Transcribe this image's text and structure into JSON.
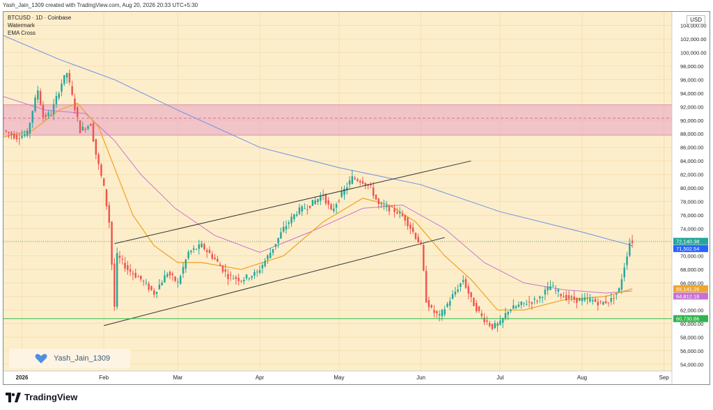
{
  "credit": "Yash_Jain_1309 created with TradingView.com, Aug 20, 2026 20:33 UTC+5:30",
  "legend": {
    "symbol": "BTCUSD · 1D · Coinbase",
    "watermark": "Watermark",
    "indicator": "EMA Cross"
  },
  "currency": "USD",
  "watermark_text": "Yash_Jain_1309",
  "brand": "TradingView",
  "colors": {
    "bullish": "#26a69a",
    "bearish": "#ef5350",
    "ema_fast": "#f0a62a",
    "ema_mid": "#c772d3",
    "ema_slow": "#6b8fe8",
    "zone": "#e9a9c6",
    "support": "#2fb54a",
    "channel": "#333333",
    "background": "#fdeecb"
  },
  "chart_data": {
    "type": "candlestick",
    "title": "BTCUSD · 1D · Coinbase",
    "y_range": [
      53000,
      106000
    ],
    "y_ticks": [
      54000,
      56000,
      58000,
      60000,
      62000,
      64000,
      66000,
      68000,
      70000,
      72000,
      74000,
      76000,
      78000,
      80000,
      82000,
      84000,
      86000,
      88000,
      90000,
      92000,
      94000,
      96000,
      98000,
      100000,
      102000,
      104000
    ],
    "y_tick_labels": [
      "54,000.00",
      "56,000.00",
      "58,000.00",
      "60,000.00",
      "62,000.00",
      "64,000.00",
      "66,000.00",
      "68,000.00",
      "70,000.00",
      "72,000.00",
      "74,000.00",
      "76,000.00",
      "78,000.00",
      "80,000.00",
      "82,000.00",
      "84,000.00",
      "86,000.00",
      "88,000.00",
      "90,000.00",
      "92,000.00",
      "94,000.00",
      "96,000.00",
      "98,000.00",
      "100,000.00",
      "102,000.00",
      "104,000.00"
    ],
    "x_range": [
      "2025-12-25",
      "2026-09-04"
    ],
    "x_ticks": [
      "2026-01-01",
      "2026-02-01",
      "2026-03-01",
      "2026-04-01",
      "2026-05-01",
      "2026-06-01",
      "2026-07-01",
      "2026-08-01",
      "2026-09-01"
    ],
    "x_tick_labels": [
      "2026",
      "Feb",
      "Mar",
      "Apr",
      "May",
      "Jun",
      "Jul",
      "Aug",
      "Sep"
    ],
    "candle_closes": {
      "start": "2025-12-25",
      "end": "2026-08-20",
      "anchors": [
        [
          "2025-12-25",
          88500
        ],
        [
          "2025-12-30",
          87500
        ],
        [
          "2026-01-03",
          88000
        ],
        [
          "2026-01-05",
          91500
        ],
        [
          "2026-01-07",
          94500
        ],
        [
          "2026-01-09",
          90500
        ],
        [
          "2026-01-12",
          91000
        ],
        [
          "2026-01-16",
          95500
        ],
        [
          "2026-01-18",
          97000
        ],
        [
          "2026-01-20",
          93500
        ],
        [
          "2026-01-23",
          88500
        ],
        [
          "2026-01-27",
          89500
        ],
        [
          "2026-01-29",
          85000
        ],
        [
          "2026-02-01",
          80000
        ],
        [
          "2026-02-03",
          75000
        ],
        [
          "2026-02-05",
          62500
        ],
        [
          "2026-02-06",
          70000
        ],
        [
          "2026-02-10",
          68000
        ],
        [
          "2026-02-15",
          66500
        ],
        [
          "2026-02-20",
          64500
        ],
        [
          "2026-02-25",
          67500
        ],
        [
          "2026-03-01",
          66000
        ],
        [
          "2026-03-05",
          70500
        ],
        [
          "2026-03-10",
          71500
        ],
        [
          "2026-03-15",
          69500
        ],
        [
          "2026-03-20",
          67000
        ],
        [
          "2026-03-25",
          66500
        ],
        [
          "2026-03-31",
          67500
        ],
        [
          "2026-04-05",
          70500
        ],
        [
          "2026-04-10",
          74000
        ],
        [
          "2026-04-15",
          76500
        ],
        [
          "2026-04-20",
          77500
        ],
        [
          "2026-04-25",
          79000
        ],
        [
          "2026-04-28",
          76500
        ],
        [
          "2026-05-01",
          78500
        ],
        [
          "2026-05-06",
          81500
        ],
        [
          "2026-05-10",
          81000
        ],
        [
          "2026-05-13",
          80000
        ],
        [
          "2026-05-16",
          77500
        ],
        [
          "2026-05-20",
          77000
        ],
        [
          "2026-05-23",
          76500
        ],
        [
          "2026-05-26",
          75500
        ],
        [
          "2026-05-29",
          73500
        ],
        [
          "2026-06-01",
          71500
        ],
        [
          "2026-06-03",
          63500
        ],
        [
          "2026-06-05",
          62000
        ],
        [
          "2026-06-08",
          61000
        ],
        [
          "2026-06-12",
          63500
        ],
        [
          "2026-06-17",
          66500
        ],
        [
          "2026-06-20",
          63500
        ],
        [
          "2026-06-24",
          61000
        ],
        [
          "2026-06-28",
          59500
        ],
        [
          "2026-07-01",
          60000
        ],
        [
          "2026-07-04",
          62000
        ],
        [
          "2026-07-10",
          63000
        ],
        [
          "2026-07-15",
          63500
        ],
        [
          "2026-07-20",
          65500
        ],
        [
          "2026-07-25",
          64000
        ],
        [
          "2026-07-30",
          63500
        ],
        [
          "2026-08-04",
          63500
        ],
        [
          "2026-08-08",
          63000
        ],
        [
          "2026-08-12",
          63500
        ],
        [
          "2026-08-15",
          65000
        ],
        [
          "2026-08-17",
          68500
        ],
        [
          "2026-08-19",
          72000
        ],
        [
          "2026-08-20",
          72140
        ]
      ]
    },
    "ema_fast": [
      [
        "2025-12-25",
        87500
      ],
      [
        "2026-01-05",
        88500
      ],
      [
        "2026-01-15",
        91500
      ],
      [
        "2026-01-22",
        92500
      ],
      [
        "2026-01-30",
        89000
      ],
      [
        "2026-02-05",
        83000
      ],
      [
        "2026-02-12",
        76000
      ],
      [
        "2026-02-20",
        71500
      ],
      [
        "2026-03-01",
        69000
      ],
      [
        "2026-03-10",
        69000
      ],
      [
        "2026-03-25",
        68000
      ],
      [
        "2026-04-10",
        70000
      ],
      [
        "2026-04-25",
        75000
      ],
      [
        "2026-05-10",
        78500
      ],
      [
        "2026-05-20",
        77500
      ],
      [
        "2026-05-30",
        75000
      ],
      [
        "2026-06-10",
        70000
      ],
      [
        "2026-06-20",
        66500
      ],
      [
        "2026-06-30",
        62000
      ],
      [
        "2026-07-10",
        62000
      ],
      [
        "2026-07-25",
        63500
      ],
      [
        "2026-08-10",
        64000
      ],
      [
        "2026-08-20",
        65141
      ]
    ],
    "ema_mid": [
      [
        "2025-12-25",
        93500
      ],
      [
        "2026-01-10",
        91500
      ],
      [
        "2026-01-25",
        91000
      ],
      [
        "2026-02-05",
        87000
      ],
      [
        "2026-02-15",
        82000
      ],
      [
        "2026-02-28",
        77000
      ],
      [
        "2026-03-15",
        73000
      ],
      [
        "2026-04-01",
        70500
      ],
      [
        "2026-04-20",
        73500
      ],
      [
        "2026-05-10",
        77000
      ],
      [
        "2026-05-25",
        77500
      ],
      [
        "2026-06-10",
        74000
      ],
      [
        "2026-06-25",
        69000
      ],
      [
        "2026-07-10",
        66000
      ],
      [
        "2026-07-25",
        65000
      ],
      [
        "2026-08-10",
        64500
      ],
      [
        "2026-08-20",
        64812
      ]
    ],
    "ema_slow": [
      [
        "2025-12-25",
        102500
      ],
      [
        "2026-01-15",
        99000
      ],
      [
        "2026-02-05",
        96000
      ],
      [
        "2026-03-01",
        91500
      ],
      [
        "2026-04-01",
        86000
      ],
      [
        "2026-05-01",
        83000
      ],
      [
        "2026-06-01",
        80500
      ],
      [
        "2026-07-01",
        76500
      ],
      [
        "2026-08-01",
        73500
      ],
      [
        "2026-08-20",
        71502
      ]
    ],
    "zone": [
      87800,
      92300
    ],
    "zone_midline": 90300,
    "support_level": 60730.86,
    "channel_upper": [
      [
        "2026-02-05",
        71800
      ],
      [
        "2026-06-20",
        84000
      ]
    ],
    "channel_lower": [
      [
        "2026-02-01",
        59700
      ],
      [
        "2026-06-10",
        72700
      ]
    ],
    "price_labels": [
      {
        "value": 72140.38,
        "text": "72,140.38",
        "color": "#26a69a"
      },
      {
        "value": 71502.54,
        "text": "71,502.54",
        "color": "#2962ff"
      },
      {
        "value": 65141.26,
        "text": "65,141.26",
        "color": "#f0a62a"
      },
      {
        "value": 64812.18,
        "text": "64,812.18",
        "color": "#c772d3"
      },
      {
        "value": 60730.86,
        "text": "60,730.86",
        "color": "#2fb54a"
      }
    ],
    "last_price": 72140.38
  }
}
